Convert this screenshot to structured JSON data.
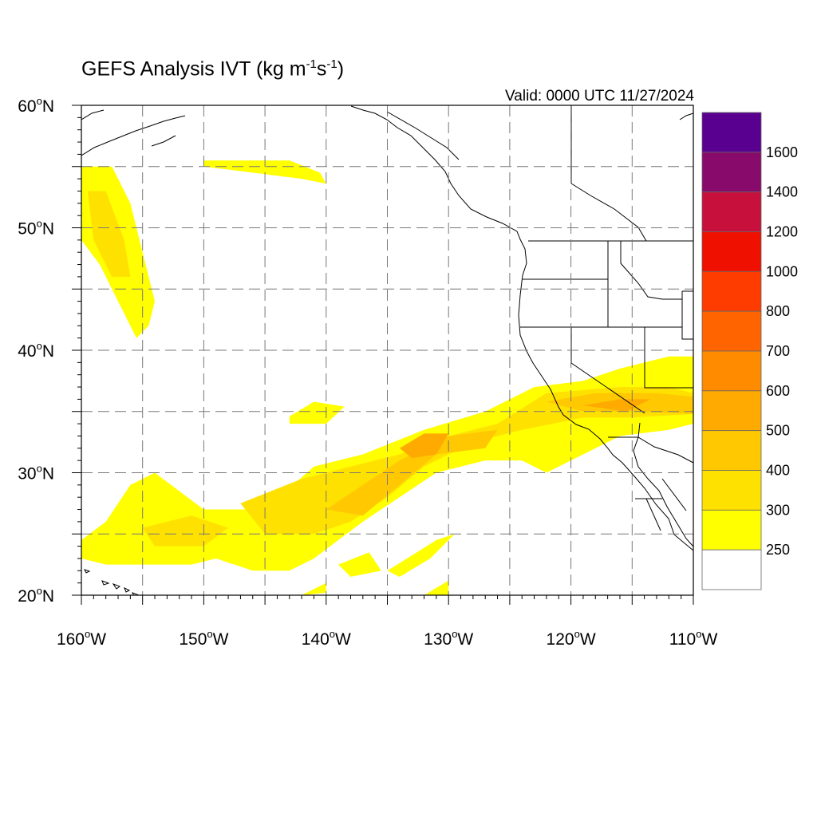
{
  "title": {
    "text": "GEFS Analysis IVT (kg m",
    "exp1": "-1",
    "mid": "s",
    "exp2": "-1",
    "close": ")"
  },
  "valid_label": "Valid: 0000 UTC 11/27/2024",
  "map": {
    "lon_range": [
      -160,
      -110
    ],
    "lat_range": [
      20,
      60
    ],
    "gridlines": "dashed",
    "lon_ticks": [
      {
        "value": -160,
        "label": "160",
        "hem": "W"
      },
      {
        "value": -150,
        "label": "150",
        "hem": "W"
      },
      {
        "value": -140,
        "label": "140",
        "hem": "W"
      },
      {
        "value": -130,
        "label": "130",
        "hem": "W"
      },
      {
        "value": -120,
        "label": "120",
        "hem": "W"
      },
      {
        "value": -110,
        "label": "110",
        "hem": "W"
      }
    ],
    "lat_ticks": [
      {
        "value": 60,
        "label": "60",
        "hem": "N"
      },
      {
        "value": 50,
        "label": "50",
        "hem": "N"
      },
      {
        "value": 40,
        "label": "40",
        "hem": "N"
      },
      {
        "value": 30,
        "label": "30",
        "hem": "N"
      },
      {
        "value": 20,
        "label": "20",
        "hem": "N"
      }
    ]
  },
  "colorbar": {
    "labels": [
      "250",
      "300",
      "400",
      "500",
      "600",
      "700",
      "800",
      "1000",
      "1200",
      "1400",
      "1600"
    ],
    "colors": [
      "#ffffff",
      "#ffff00",
      "#ffe100",
      "#ffc800",
      "#ffaa00",
      "#ff8c00",
      "#ff6400",
      "#ff3c00",
      "#f01000",
      "#c8103c",
      "#880a6a",
      "#5a0090"
    ]
  },
  "ivt_regions": [
    {
      "level": 1,
      "points": [
        [
          -160,
          55
        ],
        [
          -157.5,
          55
        ],
        [
          -156,
          52
        ],
        [
          -155,
          48
        ],
        [
          -154,
          44
        ],
        [
          -154.5,
          42
        ],
        [
          -155.5,
          41
        ],
        [
          -157,
          44
        ],
        [
          -158.5,
          47
        ],
        [
          -160,
          49
        ]
      ]
    },
    {
      "level": 2,
      "points": [
        [
          -159.5,
          53
        ],
        [
          -158,
          53
        ],
        [
          -156.5,
          49
        ],
        [
          -156,
          46
        ],
        [
          -157.5,
          46
        ],
        [
          -159,
          49
        ]
      ]
    },
    {
      "level": 1,
      "points": [
        [
          -150,
          55.5
        ],
        [
          -143,
          55.5
        ],
        [
          -140.5,
          54.5
        ],
        [
          -140,
          53.6
        ],
        [
          -142,
          54
        ],
        [
          -146,
          54.5
        ],
        [
          -150,
          55
        ]
      ]
    },
    {
      "level": 1,
      "points": [
        [
          -143,
          34.6
        ],
        [
          -141,
          35.8
        ],
        [
          -138.5,
          35.4
        ],
        [
          -140,
          34
        ],
        [
          -143,
          34
        ]
      ]
    },
    {
      "level": 1,
      "points": [
        [
          -160,
          24.5
        ],
        [
          -158,
          26
        ],
        [
          -156,
          29
        ],
        [
          -154,
          30
        ],
        [
          -150,
          27
        ],
        [
          -145,
          27
        ],
        [
          -141,
          30.5
        ],
        [
          -137,
          31.5
        ],
        [
          -132,
          33.5
        ],
        [
          -127,
          35
        ],
        [
          -123,
          37
        ],
        [
          -119,
          37.5
        ],
        [
          -116,
          38.5
        ],
        [
          -112,
          39.5
        ],
        [
          -110,
          39.5
        ],
        [
          -110,
          34
        ],
        [
          -112,
          33.5
        ],
        [
          -116,
          33
        ],
        [
          -119,
          31.5
        ],
        [
          -121,
          30.5
        ],
        [
          -122,
          30
        ],
        [
          -124,
          31
        ],
        [
          -127,
          31
        ],
        [
          -131,
          30
        ],
        [
          -134,
          28
        ],
        [
          -137,
          26
        ],
        [
          -139,
          24.5
        ],
        [
          -141,
          23
        ],
        [
          -143,
          22
        ],
        [
          -146,
          22
        ],
        [
          -149,
          23
        ],
        [
          -151,
          22.5
        ],
        [
          -155,
          22.5
        ],
        [
          -158,
          22.5
        ],
        [
          -160,
          23
        ]
      ]
    },
    {
      "level": 2,
      "points": [
        [
          -155,
          25.5
        ],
        [
          -151,
          26.5
        ],
        [
          -148,
          25.5
        ],
        [
          -150,
          24
        ],
        [
          -154,
          24
        ]
      ]
    },
    {
      "level": 2,
      "points": [
        [
          -147,
          27.5
        ],
        [
          -142,
          29.5
        ],
        [
          -138,
          30.5
        ],
        [
          -134,
          31.5
        ],
        [
          -130,
          33
        ],
        [
          -126,
          34
        ],
        [
          -122,
          36.5
        ],
        [
          -116,
          37
        ],
        [
          -112,
          37
        ],
        [
          -110,
          36.5
        ],
        [
          -110,
          34.8
        ],
        [
          -115,
          34.5
        ],
        [
          -119,
          34.5
        ],
        [
          -124,
          33.5
        ],
        [
          -128,
          32.5
        ],
        [
          -132,
          30.5
        ],
        [
          -135,
          28
        ],
        [
          -138,
          26
        ],
        [
          -141,
          25
        ],
        [
          -145,
          25
        ]
      ]
    },
    {
      "level": 3,
      "points": [
        [
          -140,
          27
        ],
        [
          -137,
          29
        ],
        [
          -134,
          31
        ],
        [
          -130,
          33
        ],
        [
          -126,
          33.5
        ],
        [
          -127,
          32
        ],
        [
          -131,
          31.5
        ],
        [
          -134,
          29
        ],
        [
          -137,
          26.5
        ]
      ]
    },
    {
      "level": 3,
      "points": [
        [
          -122,
          35.8
        ],
        [
          -118,
          36.5
        ],
        [
          -113,
          36.5
        ],
        [
          -110,
          36.2
        ],
        [
          -110,
          34.8
        ],
        [
          -115,
          35
        ],
        [
          -119,
          35
        ]
      ]
    },
    {
      "level": 4,
      "points": [
        [
          -134,
          32
        ],
        [
          -132,
          33.2
        ],
        [
          -130,
          33.2
        ],
        [
          -131,
          31.5
        ],
        [
          -133,
          31.2
        ]
      ]
    },
    {
      "level": 4,
      "points": [
        [
          -119,
          35.5
        ],
        [
          -116,
          36
        ],
        [
          -113.5,
          36
        ],
        [
          -115.5,
          35
        ]
      ]
    },
    {
      "level": 1,
      "points": [
        [
          -139,
          22.5
        ],
        [
          -136.5,
          23.5
        ],
        [
          -135.5,
          22
        ],
        [
          -138,
          21.5
        ]
      ]
    },
    {
      "level": 1,
      "points": [
        [
          -135,
          22
        ],
        [
          -131,
          24.5
        ],
        [
          -129.5,
          25
        ],
        [
          -131.5,
          23
        ],
        [
          -134,
          21.5
        ]
      ]
    },
    {
      "level": 1,
      "points": [
        [
          -142,
          20
        ],
        [
          -140,
          21
        ],
        [
          -140,
          20.2
        ]
      ]
    },
    {
      "level": 1,
      "points": [
        [
          -132,
          20
        ],
        [
          -130,
          21.2
        ],
        [
          -130,
          20
        ]
      ]
    }
  ]
}
